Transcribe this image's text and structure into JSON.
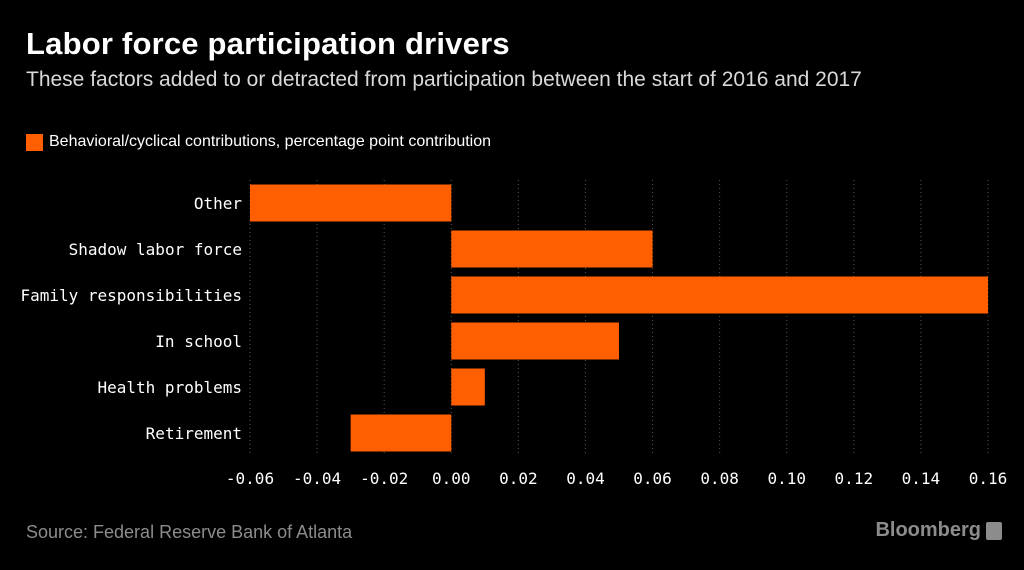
{
  "title": "Labor force participation drivers",
  "subtitle": "These factors added to or detracted from participation between the start of 2016 and 2017",
  "legend_label": "Behavioral/cyclical contributions, percentage point contribution",
  "source": "Source: Federal Reserve Bank of Atlanta",
  "brand": "Bloomberg",
  "colors": {
    "background": "#000000",
    "bar": "#ff5f00",
    "grid": "#555555",
    "text": "#ffffff",
    "muted": "#8c8c8c"
  },
  "chart_data": {
    "type": "bar",
    "orientation": "horizontal",
    "categories": [
      "Other",
      "Shadow labor force",
      "Family responsibilities",
      "In school",
      "Health problems",
      "Retirement"
    ],
    "series": [
      {
        "name": "Behavioral/cyclical contributions, percentage point contribution",
        "values": [
          -0.06,
          0.06,
          0.16,
          0.05,
          0.01,
          -0.03
        ]
      }
    ],
    "xlim": [
      -0.06,
      0.16
    ],
    "xticks": [
      "-0.06",
      "-0.04",
      "-0.02",
      "0.00",
      "0.02",
      "0.04",
      "0.06",
      "0.08",
      "0.10",
      "0.12",
      "0.14",
      "0.16"
    ],
    "grid": "vertical dotted",
    "legend_position": "top-left"
  }
}
